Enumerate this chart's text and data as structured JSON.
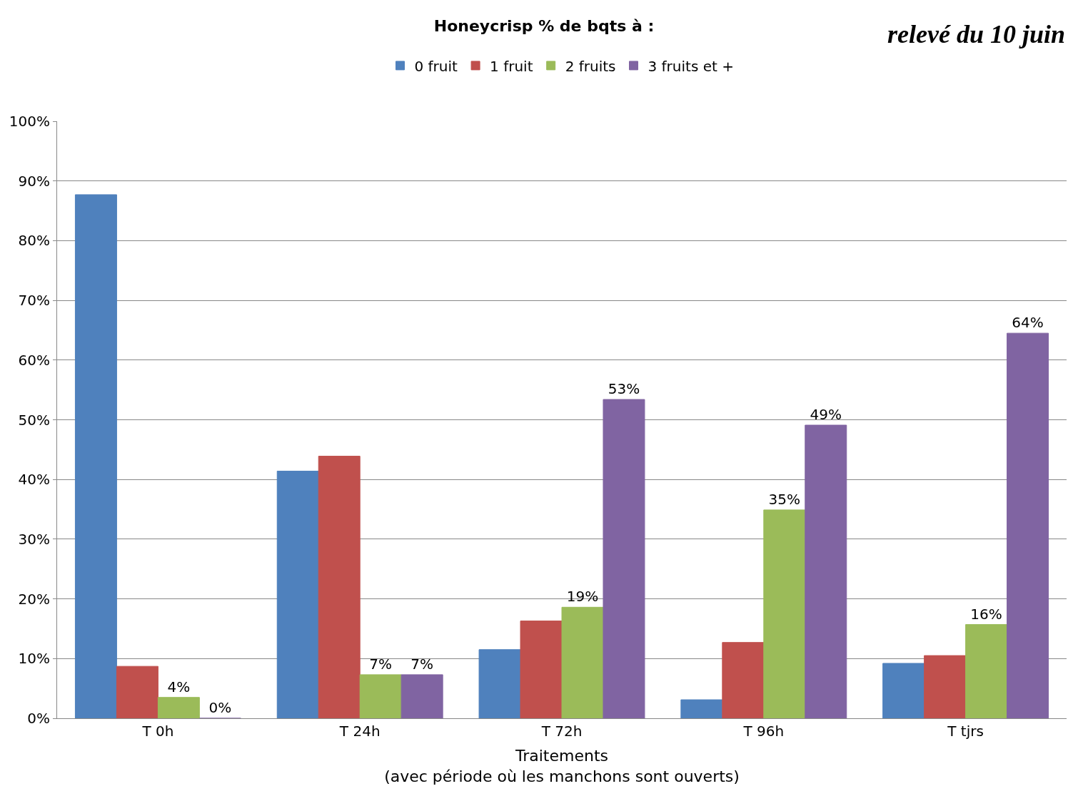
{
  "chart_data": {
    "type": "bar",
    "title": "Honeycrisp % de bqts à :",
    "categories": [
      "T 0h",
      "T 24h",
      "T 72h",
      "T 96h",
      "T tjrs"
    ],
    "xlabel": "Traitements\n(avec période où les manchons sont ouverts)",
    "series": [
      {
        "name": "0 fruit",
        "color": "#4f81bd",
        "values": [
          87.7,
          41.4,
          11.5,
          3.1,
          9.2
        ]
      },
      {
        "name": "1 fruit",
        "color": "#c0504d",
        "values": [
          8.7,
          43.9,
          16.3,
          12.7,
          10.5
        ]
      },
      {
        "name": "2 fruits",
        "color": "#9bbb59",
        "values": [
          3.5,
          7.3,
          18.6,
          34.9,
          15.7
        ],
        "value_labels": [
          "4%",
          "7%",
          "19%",
          "35%",
          "16%"
        ]
      },
      {
        "name": "3 fruits et +",
        "color": "#8064a2",
        "values": [
          0,
          7.3,
          53.4,
          49.1,
          64.5
        ],
        "value_labels": [
          "0%",
          "7%",
          "53%",
          "49%",
          "64%"
        ]
      }
    ],
    "ylim": [
      0,
      100
    ],
    "yticks": [
      {
        "value": 0,
        "label": "0%"
      },
      {
        "value": 10,
        "label": "10%"
      },
      {
        "value": 20,
        "label": "20%"
      },
      {
        "value": 30,
        "label": "30%"
      },
      {
        "value": 40,
        "label": "40%"
      },
      {
        "value": 50,
        "label": "50%"
      },
      {
        "value": 60,
        "label": "60%"
      },
      {
        "value": 70,
        "label": "70%"
      },
      {
        "value": 80,
        "label": "80%"
      },
      {
        "value": 90,
        "label": "90%"
      },
      {
        "value": 100,
        "label": "100%"
      }
    ],
    "grid": "y",
    "legend": "top",
    "annotations": [
      "relevé du 10 juin"
    ]
  }
}
